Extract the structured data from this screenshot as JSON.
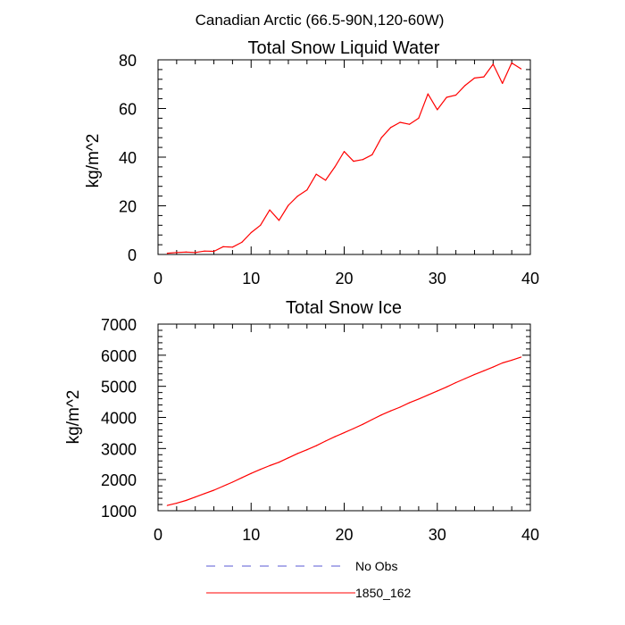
{
  "page_title": "Canadian Arctic (66.5-90N,120-60W)",
  "colors": {
    "axis": "#000000",
    "series_red": "#ff0000",
    "series_dash": "#5a5ad6"
  },
  "legend": [
    {
      "name": "No Obs",
      "color": "#5a5ad6",
      "style": "dashed"
    },
    {
      "name": "1850_162",
      "color": "#ff0000",
      "style": "solid"
    }
  ],
  "chart_data": [
    {
      "type": "line",
      "title": "Total Snow Liquid Water",
      "xlabel": "",
      "ylabel": "kg/m^2",
      "xlim": [
        0,
        40
      ],
      "ylim": [
        0,
        80
      ],
      "xticks": [
        0,
        10,
        20,
        30,
        40
      ],
      "yticks": [
        0,
        20,
        40,
        60,
        80
      ],
      "series": [
        {
          "name": "1850_162",
          "color": "#ff0000",
          "x": [
            1,
            2,
            3,
            4,
            5,
            6,
            7,
            8,
            9,
            10,
            11,
            12,
            13,
            14,
            15,
            16,
            17,
            18,
            19,
            20,
            21,
            22,
            23,
            24,
            25,
            26,
            27,
            28,
            29,
            30,
            31,
            32,
            33,
            34,
            35,
            36,
            37,
            38,
            39
          ],
          "y": [
            0.5,
            0.8,
            1.0,
            0.8,
            1.4,
            1.3,
            3.2,
            3.0,
            5.0,
            9.0,
            12.0,
            18.3,
            14.0,
            20.2,
            24.0,
            26.5,
            33.0,
            30.5,
            36.0,
            42.3,
            38.3,
            39.0,
            41.0,
            48.0,
            52.2,
            54.3,
            53.5,
            56.0,
            66.0,
            59.5,
            64.6,
            65.5,
            69.5,
            72.5,
            73.0,
            78.2,
            70.3,
            78.7,
            76.3
          ]
        }
      ]
    },
    {
      "type": "line",
      "title": "Total Snow Ice",
      "xlabel": "",
      "ylabel": "kg/m^2",
      "xlim": [
        0,
        40
      ],
      "ylim": [
        1000,
        7000
      ],
      "xticks": [
        0,
        10,
        20,
        30,
        40
      ],
      "yticks": [
        1000,
        2000,
        3000,
        4000,
        5000,
        6000,
        7000
      ],
      "series": [
        {
          "name": "1850_162",
          "color": "#ff0000",
          "x": [
            1,
            2,
            3,
            4,
            5,
            6,
            7,
            8,
            9,
            10,
            11,
            12,
            13,
            14,
            15,
            16,
            17,
            18,
            19,
            20,
            21,
            22,
            23,
            24,
            25,
            26,
            27,
            28,
            29,
            30,
            31,
            32,
            33,
            34,
            35,
            36,
            37,
            38,
            39
          ],
          "y": [
            1170,
            1240,
            1330,
            1440,
            1550,
            1660,
            1790,
            1920,
            2060,
            2200,
            2330,
            2450,
            2560,
            2700,
            2840,
            2960,
            3090,
            3240,
            3380,
            3510,
            3640,
            3780,
            3930,
            4080,
            4210,
            4330,
            4470,
            4590,
            4720,
            4850,
            4980,
            5120,
            5250,
            5380,
            5500,
            5620,
            5750,
            5840,
            5940
          ]
        }
      ]
    }
  ]
}
